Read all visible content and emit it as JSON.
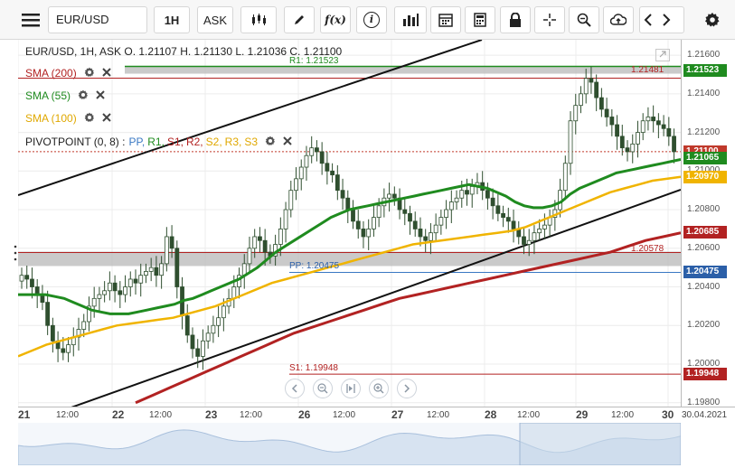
{
  "toolbar": {
    "symbol": "EUR/USD",
    "timeframe": "1H",
    "price_type": "ASK",
    "fx_label": "f(x)",
    "info_label": "i"
  },
  "header": {
    "info": "EUR/USD, 1H, ASK   O. 1.21107 H. 1.21130 L. 1.21036 C. 1.21100"
  },
  "legend": {
    "sma200": "SMA (200)",
    "sma55": "SMA (55)",
    "sma100": "SMA (100)",
    "pivot_prefix": "PIVOTPOINT (0, 8)   :",
    "pivot_pp": "PP,",
    "pivot_r1": "R1,",
    "pivot_s1": "S1,",
    "pivot_r2": "R2,",
    "pivot_s2": "S2,",
    "pivot_r3": "R3,",
    "pivot_s3": "S3"
  },
  "colors": {
    "sma200": "#b22222",
    "sma55": "#1f8b1f",
    "sma100": "#f0b400",
    "pp": "#3a78c3",
    "r1": "#1f8b1f",
    "s1": "#b22222",
    "candle": "#3b6e3b",
    "trend": "#111111"
  },
  "chart_labels": {
    "r1": "R1: 1.21523",
    "pp": "PP: 1.20475",
    "s1": "S1: 1.19948",
    "level_a": "1.21481",
    "level_b": "1.20578"
  },
  "price_axis": {
    "ticks": [
      "1.21600",
      "1.21400",
      "1.21200",
      "1.21000",
      "1.20800",
      "1.20600",
      "1.20400",
      "1.20200",
      "1.20000",
      "1.19800"
    ],
    "badges": [
      {
        "text": "1.21523",
        "color": "#1f8b1f"
      },
      {
        "text": "1.21100",
        "color": "#c0392b"
      },
      {
        "text": "1.21065",
        "color": "#1f8b1f"
      },
      {
        "text": "1.20970",
        "color": "#f0b400"
      },
      {
        "text": "1.20685",
        "color": "#b22222"
      },
      {
        "text": "1.20475",
        "color": "#2b5fa8"
      },
      {
        "text": "1.19948",
        "color": "#b22222"
      }
    ]
  },
  "time_axis": {
    "labels": [
      "21",
      "12:00",
      "22",
      "12:00",
      "23",
      "12:00",
      "26",
      "12:00",
      "27",
      "12:00",
      "28",
      "12:00",
      "29",
      "12:00",
      "30",
      "30.04.2021"
    ]
  },
  "chart_data": {
    "type": "candlestick",
    "symbol": "EUR/USD",
    "interval": "1H",
    "ylim": [
      1.1978,
      1.2168
    ],
    "close_series": [
      1.2046,
      1.2044,
      1.204,
      1.2036,
      1.2032,
      1.202,
      1.2012,
      1.2008,
      1.2006,
      1.201,
      1.2014,
      1.2018,
      1.2022,
      1.203,
      1.2034,
      1.2036,
      1.2038,
      1.2042,
      1.2038,
      1.2036,
      1.204,
      1.2044,
      1.2042,
      1.2046,
      1.2048,
      1.205,
      1.2046,
      1.2052,
      1.2066,
      1.206,
      1.204,
      1.2025,
      1.2015,
      1.2008,
      1.2004,
      1.2012,
      1.2016,
      1.202,
      1.2024,
      1.203,
      1.2034,
      1.204,
      1.2046,
      1.2052,
      1.206,
      1.2066,
      1.2064,
      1.2058,
      1.2056,
      1.2062,
      1.207,
      1.208,
      1.209,
      1.2096,
      1.2102,
      1.2108,
      1.2112,
      1.211,
      1.2104,
      1.21,
      1.2098,
      1.209,
      1.2086,
      1.208,
      1.2074,
      1.207,
      1.2066,
      1.207,
      1.2076,
      1.2082,
      1.2086,
      1.2088,
      1.2086,
      1.208,
      1.2078,
      1.2074,
      1.207,
      1.2066,
      1.2064,
      1.2068,
      1.2072,
      1.2076,
      1.208,
      1.2084,
      1.2086,
      1.209,
      1.2088,
      1.2092,
      1.2094,
      1.209,
      1.2086,
      1.2082,
      1.2078,
      1.2076,
      1.2074,
      1.207,
      1.2066,
      1.2062,
      1.2064,
      1.2068,
      1.207,
      1.2072,
      1.2076,
      1.208,
      1.209,
      1.2104,
      1.2126,
      1.2134,
      1.214,
      1.2148,
      1.2146,
      1.2138,
      1.2132,
      1.2128,
      1.2124,
      1.2118,
      1.2112,
      1.211,
      1.2114,
      1.212,
      1.2126,
      1.2128,
      1.2126,
      1.2124,
      1.2122,
      1.2118,
      1.211
    ],
    "sma55": [
      1.2036,
      1.2036,
      1.2036,
      1.2036,
      1.2035,
      1.2034,
      1.2032,
      1.203,
      1.2028,
      1.2027,
      1.2026,
      1.2026,
      1.2026,
      1.2027,
      1.2028,
      1.2029,
      1.203,
      1.2031,
      1.2033,
      1.2034,
      1.2036,
      1.2038,
      1.204,
      1.2042,
      1.2044,
      1.2047,
      1.205,
      1.2054,
      1.2058,
      1.2061,
      1.2064,
      1.2067,
      1.207,
      1.2073,
      1.2076,
      1.2078,
      1.208,
      1.2081,
      1.2082,
      1.2083,
      1.2084,
      1.2085,
      1.2086,
      1.2087,
      1.2088,
      1.2089,
      1.209,
      1.2091,
      1.2092,
      1.2093,
      1.2092,
      1.2091,
      1.2089,
      1.2087,
      1.2084,
      1.2082,
      1.2081,
      1.2081,
      1.2082,
      1.2084,
      1.2088,
      1.2091,
      1.2093,
      1.2095,
      1.2097,
      1.2099,
      1.21,
      1.2101,
      1.2102,
      1.2103,
      1.2104,
      1.2105,
      1.2106
    ],
    "sma100": [
      1.2004,
      1.2007,
      1.201,
      1.2012,
      1.2014,
      1.2016,
      1.2018,
      1.202,
      1.2021,
      1.2022,
      1.2023,
      1.2024,
      1.2026,
      1.2028,
      1.203,
      1.2033,
      1.2036,
      1.2039,
      1.2042,
      1.2044,
      1.2046,
      1.2048,
      1.205,
      1.2052,
      1.2054,
      1.2056,
      1.2058,
      1.206,
      1.2062,
      1.2063,
      1.2064,
      1.2065,
      1.2066,
      1.2067,
      1.2068,
      1.2069,
      1.2071,
      1.2074,
      1.2077,
      1.208,
      1.2083,
      1.2086,
      1.2089,
      1.2091,
      1.2093,
      1.2095,
      1.2096,
      1.2097
    ],
    "sma200": [
      1.198,
      1.1984,
      1.1988,
      1.1992,
      1.1996,
      1.2,
      1.2004,
      1.2008,
      1.2012,
      1.2016,
      1.2019,
      1.2022,
      1.2025,
      1.2028,
      1.2031,
      1.2034,
      1.2036,
      1.2038,
      1.204,
      1.2042,
      1.2044,
      1.2046,
      1.2048,
      1.205,
      1.2052,
      1.2054,
      1.2056,
      1.2058,
      1.2061,
      1.2064,
      1.2066,
      1.2068
    ],
    "pivot_levels": {
      "R1": 1.21523,
      "PP": 1.20475,
      "S1": 1.19948
    },
    "horizontal_levels": [
      1.21481,
      1.20578
    ],
    "last_close": 1.211
  }
}
